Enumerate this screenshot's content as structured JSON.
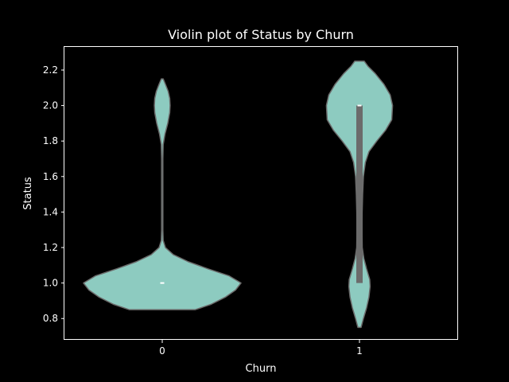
{
  "chart_data": {
    "type": "violin",
    "title": "Violin plot of Status by Churn",
    "xlabel": "Churn",
    "ylabel": "Status",
    "categories": [
      "0",
      "1"
    ],
    "ylim": [
      0.68,
      2.33
    ],
    "yticks": [
      0.8,
      1.0,
      1.2,
      1.4,
      1.6,
      1.8,
      2.0,
      2.2
    ],
    "ytick_labels": [
      "0.8",
      "1.0",
      "1.2",
      "1.4",
      "1.6",
      "1.8",
      "2.0",
      "2.2"
    ],
    "grid": false,
    "colors": {
      "background": "#000000",
      "violin_fill": "#8dcbc0",
      "violin_edge": "#6b6b6b",
      "box": "#6b6b6b",
      "median": "#ffffff",
      "text": "#ffffff"
    },
    "violins": [
      {
        "category": "0",
        "median": 1.0,
        "q1": 1.0,
        "q3": 1.0,
        "density": [
          [
            0.85,
            0.42
          ],
          [
            0.88,
            0.62
          ],
          [
            0.92,
            0.8
          ],
          [
            0.96,
            0.93
          ],
          [
            1.0,
            1.0
          ],
          [
            1.04,
            0.85
          ],
          [
            1.08,
            0.58
          ],
          [
            1.12,
            0.33
          ],
          [
            1.16,
            0.14
          ],
          [
            1.2,
            0.04
          ],
          [
            1.24,
            0.012
          ],
          [
            1.3,
            0.008
          ],
          [
            1.4,
            0.008
          ],
          [
            1.5,
            0.008
          ],
          [
            1.6,
            0.008
          ],
          [
            1.7,
            0.008
          ],
          [
            1.78,
            0.012
          ],
          [
            1.84,
            0.035
          ],
          [
            1.9,
            0.07
          ],
          [
            1.96,
            0.095
          ],
          [
            2.0,
            0.1
          ],
          [
            2.04,
            0.095
          ],
          [
            2.08,
            0.075
          ],
          [
            2.12,
            0.04
          ],
          [
            2.15,
            0.012
          ]
        ]
      },
      {
        "category": "1",
        "median": 2.0,
        "q1": 1.0,
        "q3": 2.0,
        "density": [
          [
            0.75,
            0.02
          ],
          [
            0.8,
            0.05
          ],
          [
            0.86,
            0.09
          ],
          [
            0.92,
            0.12
          ],
          [
            0.98,
            0.135
          ],
          [
            1.02,
            0.13
          ],
          [
            1.08,
            0.09
          ],
          [
            1.14,
            0.055
          ],
          [
            1.2,
            0.035
          ],
          [
            1.3,
            0.032
          ],
          [
            1.4,
            0.034
          ],
          [
            1.5,
            0.04
          ],
          [
            1.6,
            0.05
          ],
          [
            1.68,
            0.075
          ],
          [
            1.74,
            0.12
          ],
          [
            1.8,
            0.22
          ],
          [
            1.86,
            0.33
          ],
          [
            1.92,
            0.41
          ],
          [
            2.0,
            0.42
          ],
          [
            2.06,
            0.39
          ],
          [
            2.12,
            0.31
          ],
          [
            2.18,
            0.2
          ],
          [
            2.22,
            0.11
          ],
          [
            2.25,
            0.06
          ]
        ]
      }
    ]
  }
}
